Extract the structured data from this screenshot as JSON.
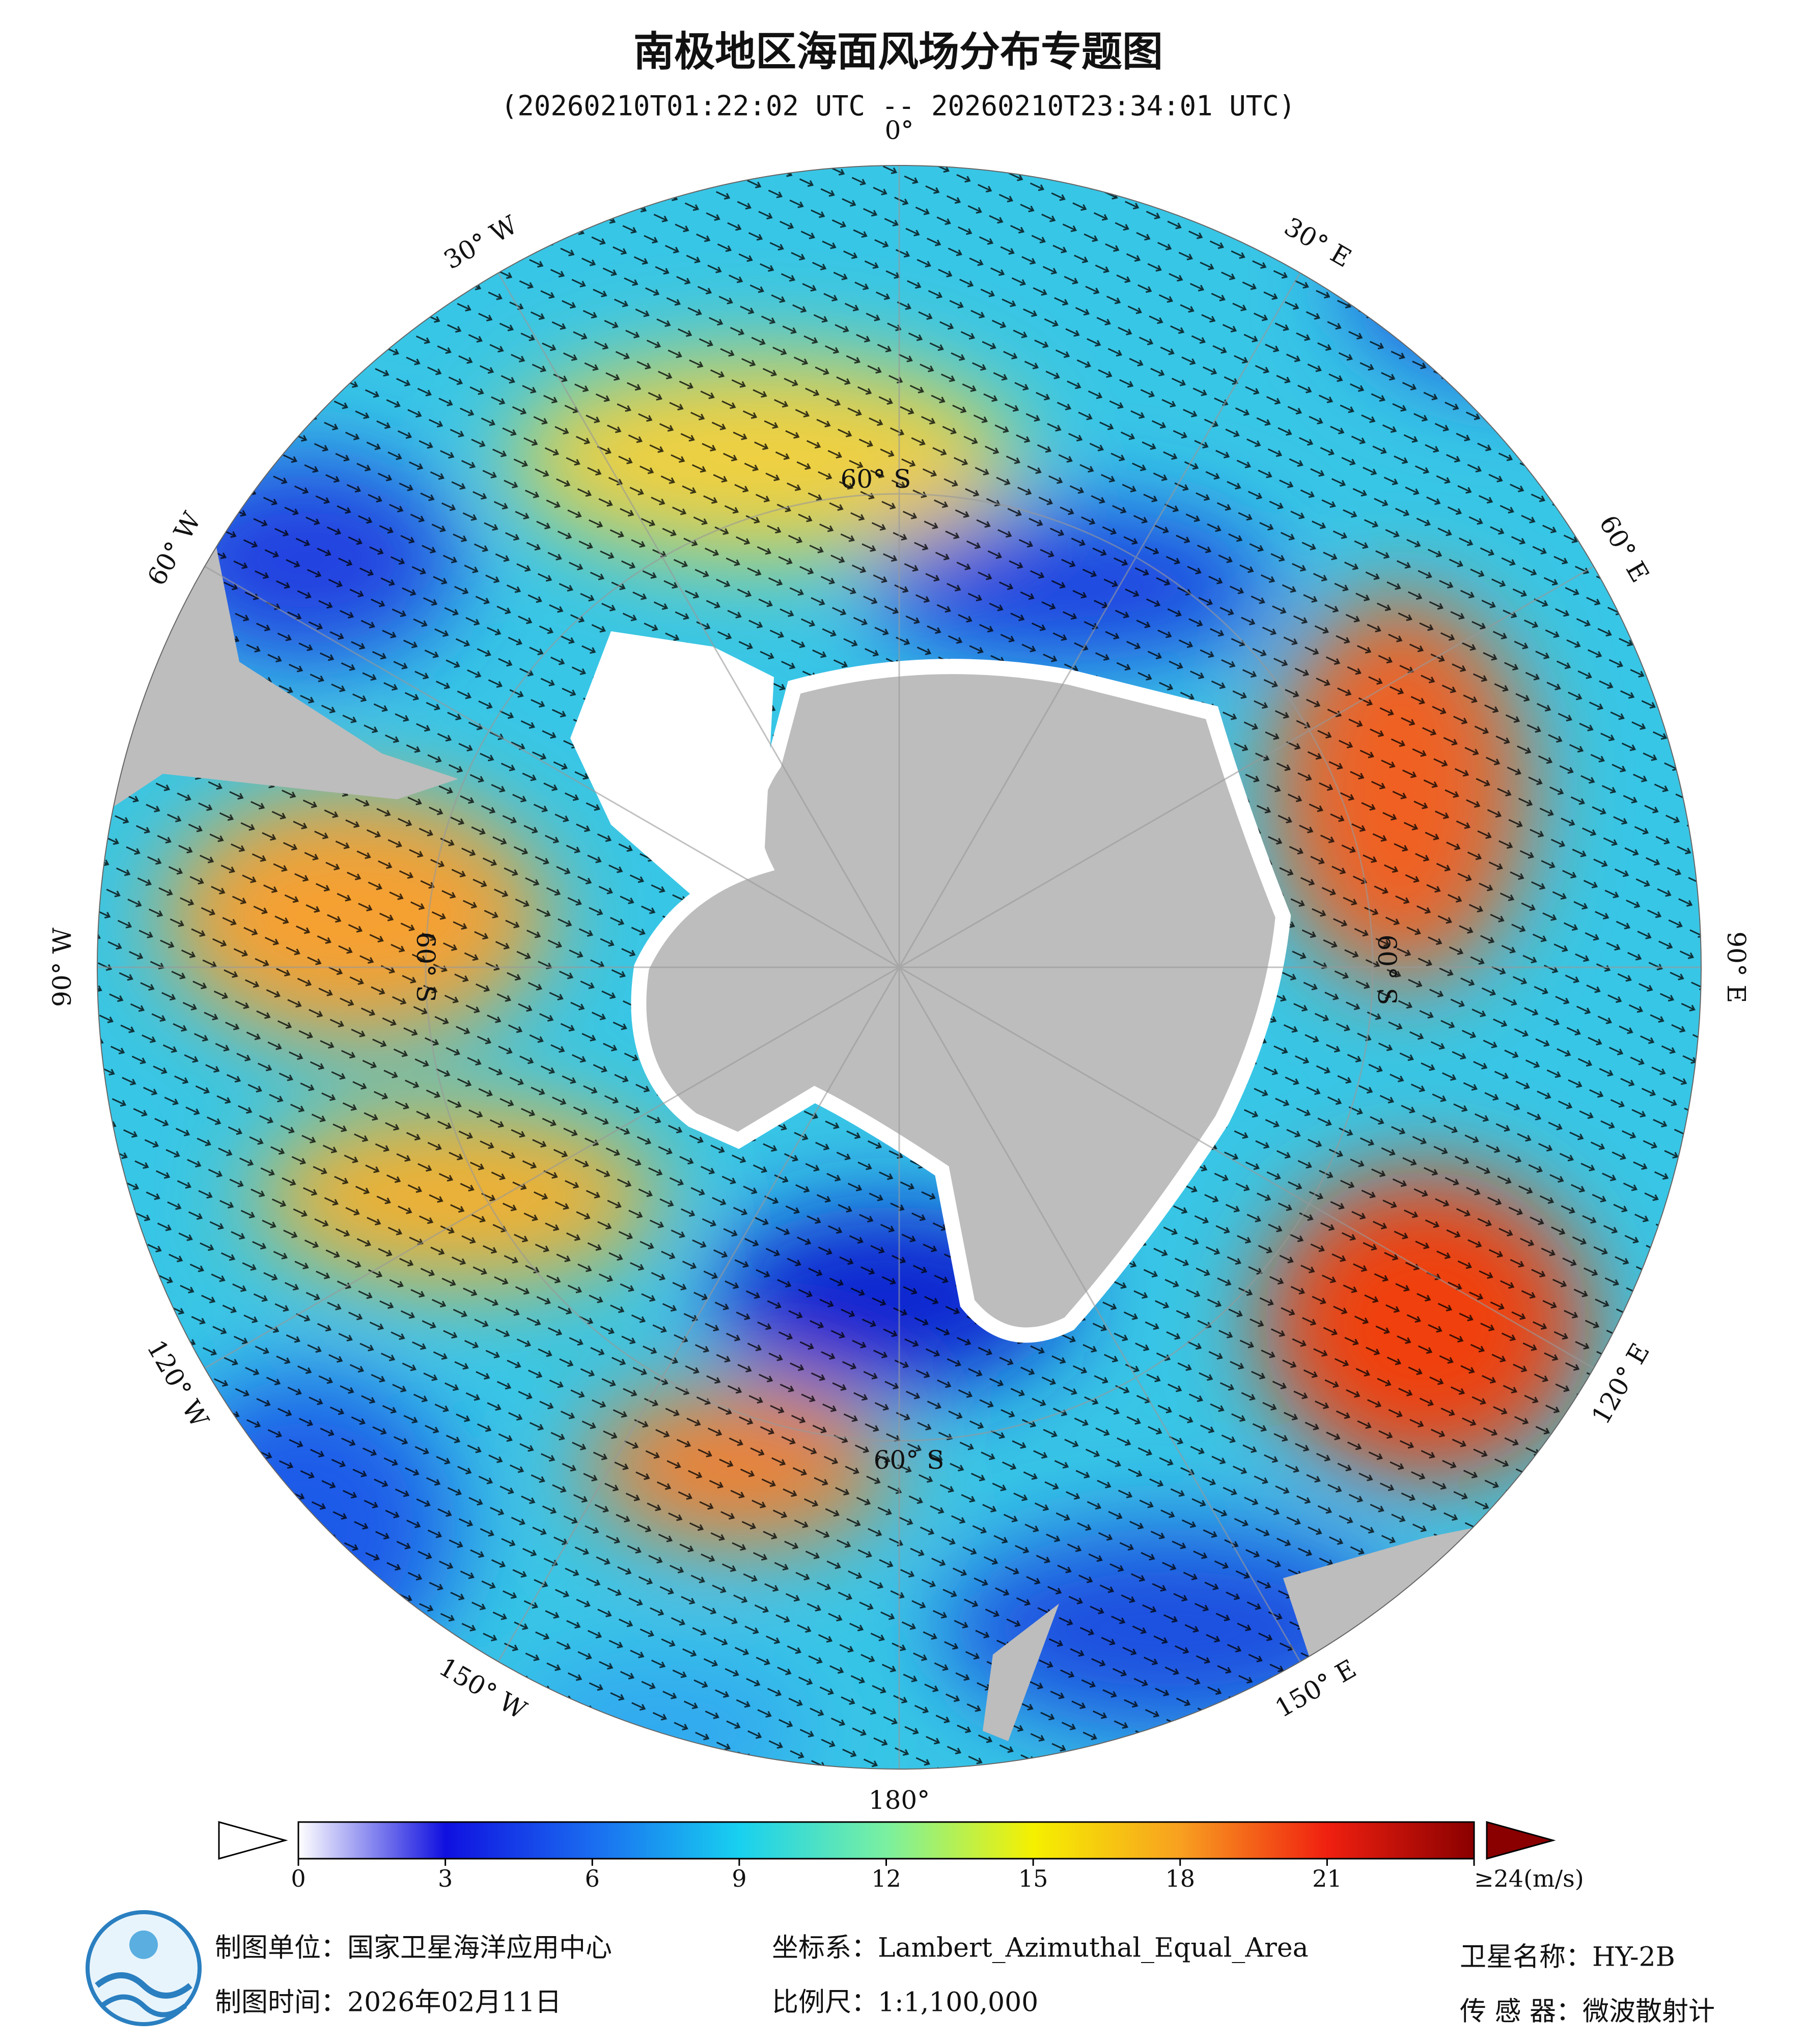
{
  "title": "南极地区海面风场分布专题图",
  "subtitle": "(20260210T01:22:02 UTC -- 20260210T23:34:01 UTC)",
  "longitude_labels": [
    "0°",
    "30° E",
    "60° E",
    "90° E",
    "120° E",
    "150° E",
    "180°",
    "150° W",
    "120° W",
    "90° W",
    "60° W",
    "30° W"
  ],
  "latitude_labels": [
    "60° S",
    "60° S",
    "60° S",
    "60° S"
  ],
  "colorbar": {
    "lim": [
      0,
      24
    ],
    "ticks": [
      0,
      3,
      6,
      9,
      12,
      15,
      18,
      21,
      {
        "value": 24,
        "label": "≥24(m/s)"
      }
    ]
  },
  "footer": {
    "unit": "制图单位：国家卫星海洋应用中心",
    "date": "制图时间：2026年02月11日",
    "crs": "坐标系：Lambert_Azimuthal_Equal_Area",
    "scale": "比例尺：1:1,100,000",
    "satellite": "卫星名称：HY-2B",
    "sensor": "传 感 器：微波散射计"
  }
}
